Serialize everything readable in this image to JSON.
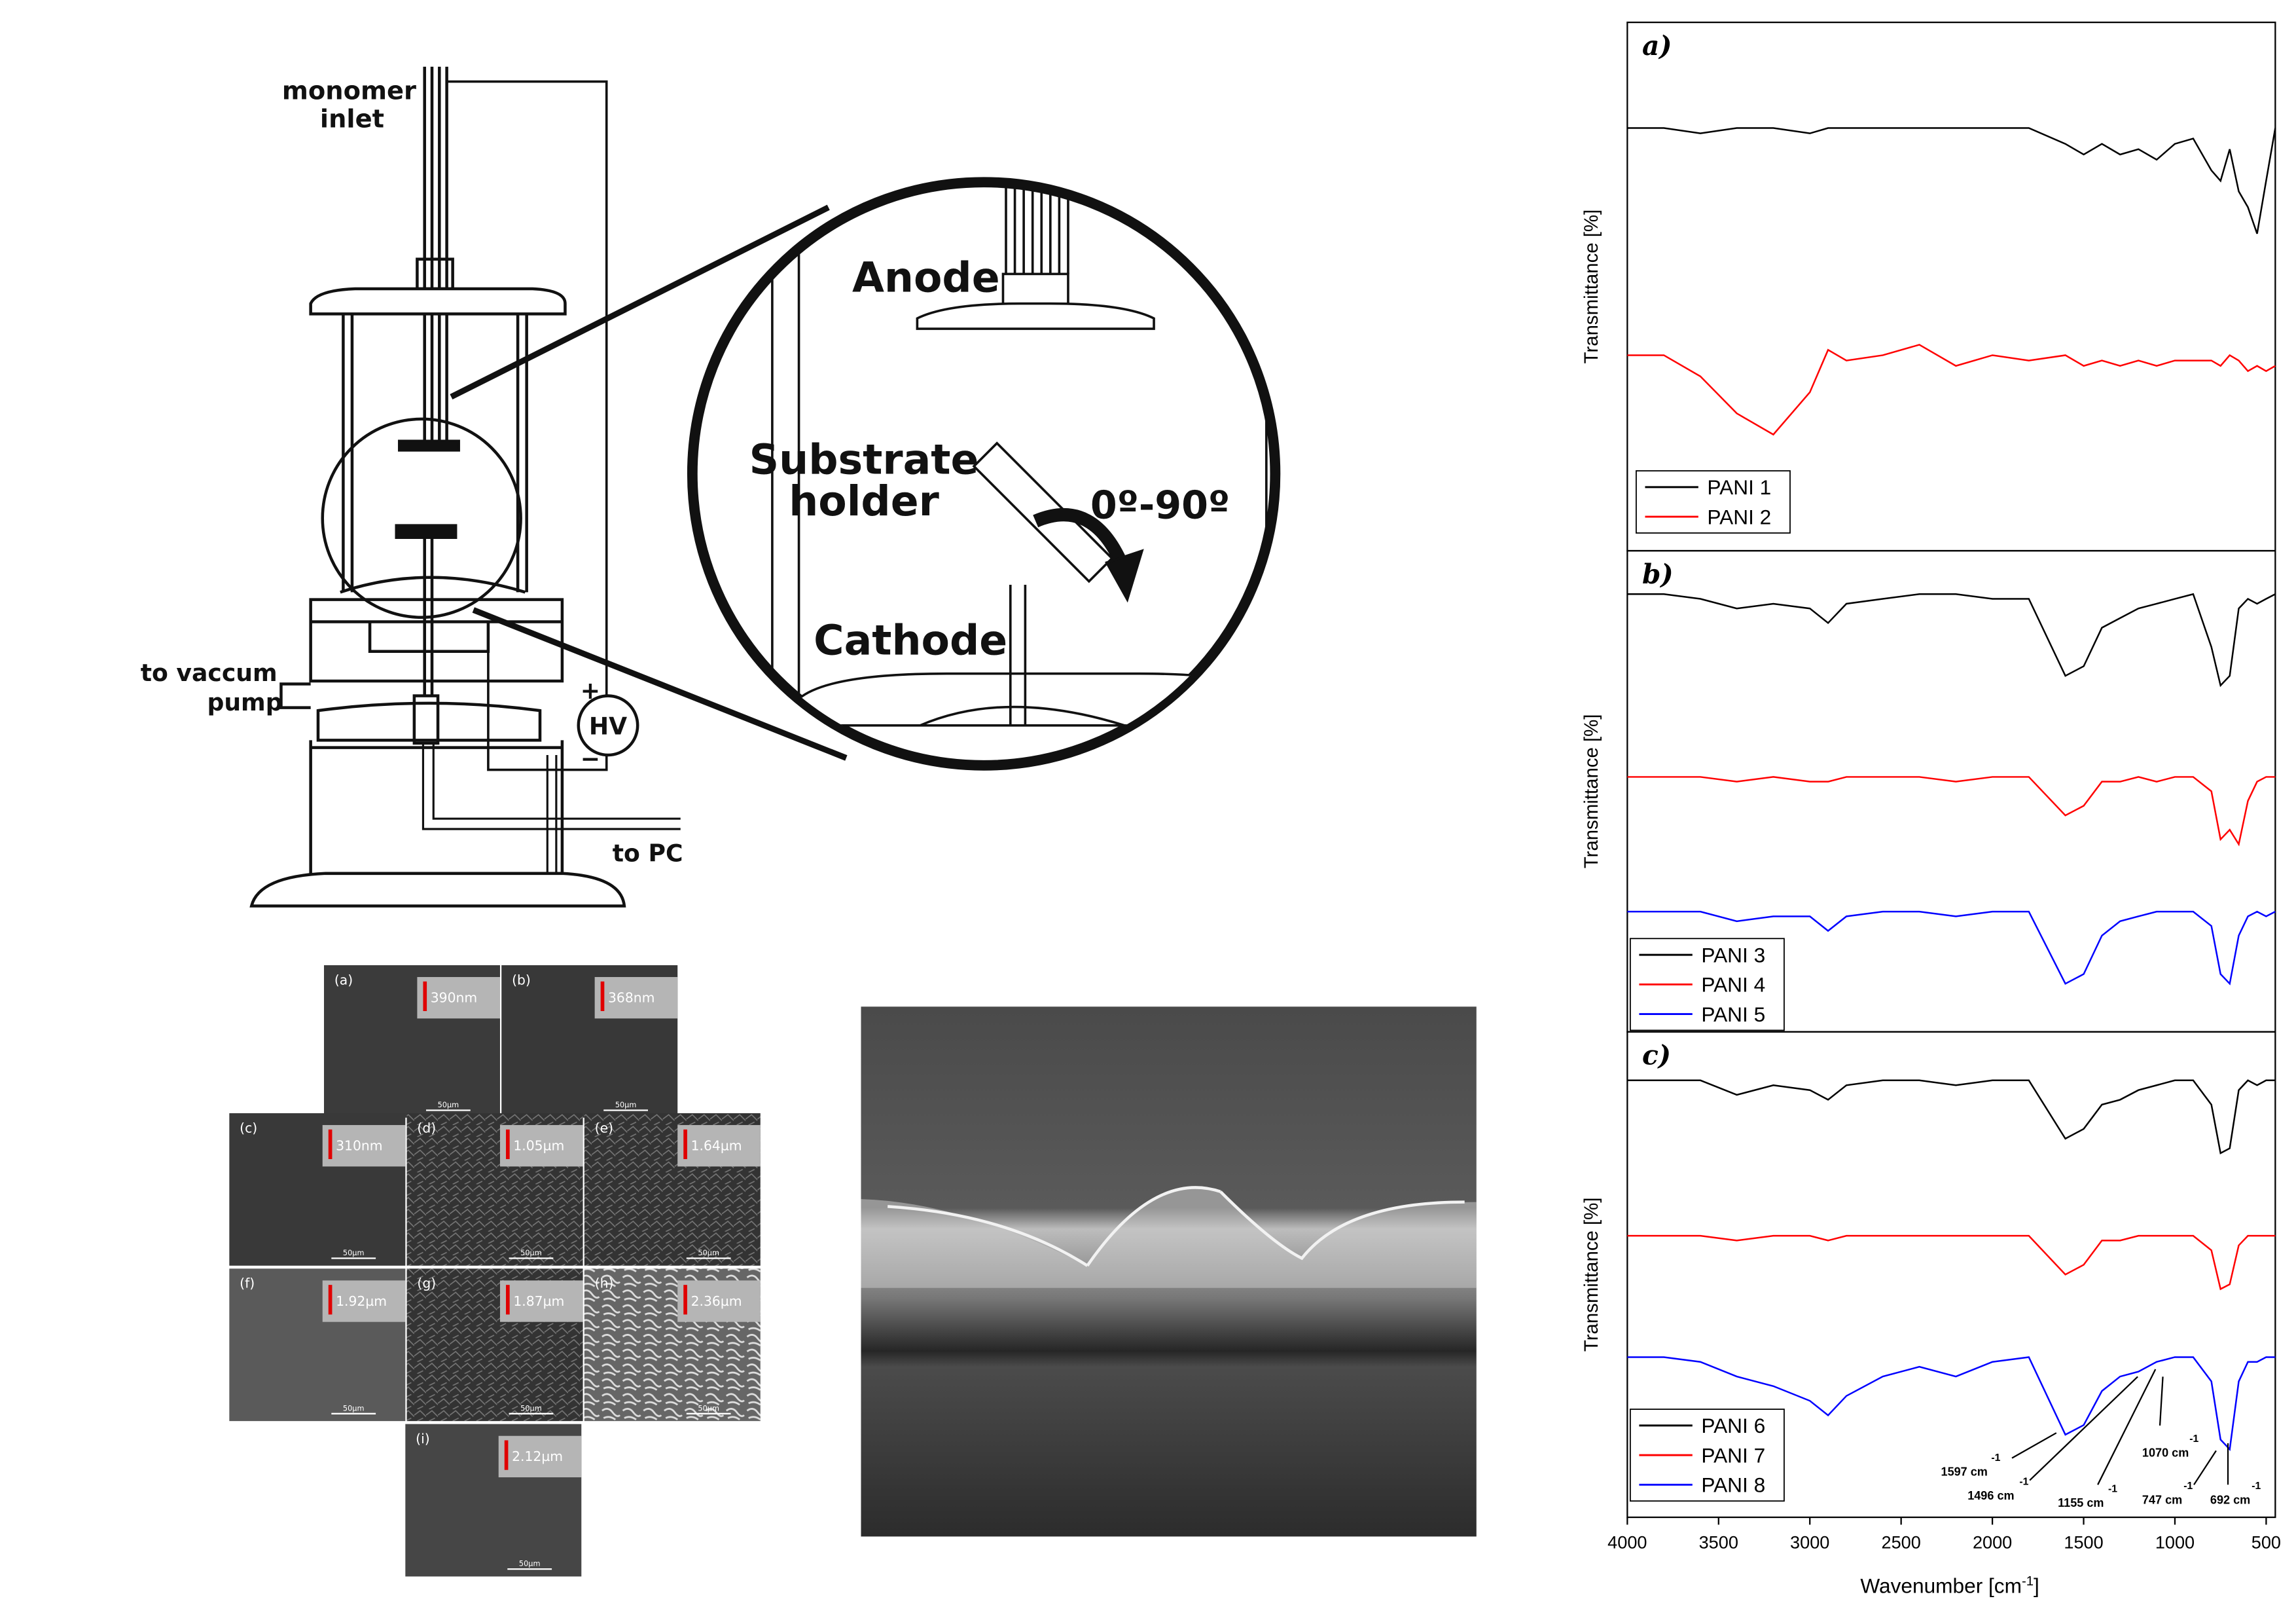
{
  "diagram": {
    "monomer": "monomer",
    "inlet": "inlet",
    "pump1": "to vaccum",
    "pump2": "pump",
    "pc": "to PC",
    "plus": "+",
    "hv": "HV",
    "minus": "−",
    "anode": "Anode",
    "substrate1": "Substrate",
    "substrate2": "holder",
    "angle": "0º-90º",
    "cathode": "Cathode"
  },
  "sem": [
    {
      "label": "(a)",
      "thickness": "390nm",
      "scale": "50µm"
    },
    {
      "label": "(b)",
      "thickness": "368nm",
      "scale": "50µm"
    },
    {
      "label": "(c)",
      "thickness": "310nm",
      "scale": "50µm"
    },
    {
      "label": "(d)",
      "thickness": "1.05µm",
      "scale": "50µm"
    },
    {
      "label": "(e)",
      "thickness": "1.64µm",
      "scale": "50µm"
    },
    {
      "label": "(f)",
      "thickness": "1.92µm",
      "scale": "50µm"
    },
    {
      "label": "(g)",
      "thickness": "1.87µm",
      "scale": "50µm"
    },
    {
      "label": "(h)",
      "thickness": "2.36µm",
      "scale": "50µm"
    },
    {
      "label": "(i)",
      "thickness": "2.12µm",
      "scale": "50µm"
    }
  ],
  "spectra": {
    "type": "line",
    "ylabel": "Transmittance [%]",
    "xlabel": "Wavenumber [cm",
    "xlabel_sup": "-1",
    "xlabel_end": "]",
    "xlim": [
      4000,
      450
    ],
    "ylim": [
      0,
      100
    ],
    "xticks": [
      4000,
      3500,
      3000,
      2500,
      2000,
      1500,
      1000,
      500
    ],
    "x": [
      4000,
      3800,
      3600,
      3400,
      3200,
      3000,
      2900,
      2800,
      2600,
      2400,
      2200,
      2000,
      1800,
      1600,
      1500,
      1400,
      1300,
      1200,
      1100,
      1000,
      900,
      800,
      750,
      700,
      650,
      600,
      550,
      500,
      450
    ],
    "panels": [
      {
        "label": "a)",
        "series": [
          {
            "name": "PANI 1",
            "color": "#000000",
            "values": [
              80,
              80,
              79,
              80,
              80,
              79,
              80,
              80,
              80,
              80,
              80,
              80,
              80,
              77,
              75,
              77,
              75,
              76,
              74,
              77,
              78,
              72,
              70,
              76,
              68,
              65,
              60,
              70,
              80
            ]
          },
          {
            "name": "PANI 2",
            "color": "#ff0000",
            "values": [
              37,
              37,
              33,
              26,
              22,
              30,
              38,
              36,
              37,
              39,
              35,
              37,
              36,
              37,
              35,
              36,
              35,
              36,
              35,
              36,
              36,
              36,
              35,
              37,
              36,
              34,
              35,
              34,
              35
            ]
          }
        ]
      },
      {
        "label": "b)",
        "series": [
          {
            "name": "PANI 3",
            "color": "#000000",
            "values": [
              91,
              91,
              90,
              88,
              89,
              88,
              85,
              89,
              90,
              91,
              91,
              90,
              90,
              74,
              76,
              84,
              86,
              88,
              89,
              90,
              91,
              80,
              72,
              74,
              88,
              90,
              89,
              90,
              91
            ]
          },
          {
            "name": "PANI 4",
            "color": "#ff0000",
            "values": [
              53,
              53,
              53,
              52,
              53,
              52,
              52,
              53,
              53,
              53,
              52,
              53,
              53,
              45,
              47,
              52,
              52,
              53,
              52,
              53,
              53,
              50,
              40,
              42,
              39,
              48,
              52,
              53,
              53
            ]
          },
          {
            "name": "PANI 5",
            "color": "#0000ff",
            "values": [
              25,
              25,
              25,
              23,
              24,
              24,
              21,
              24,
              25,
              25,
              24,
              25,
              25,
              10,
              12,
              20,
              23,
              24,
              25,
              25,
              25,
              22,
              12,
              10,
              20,
              24,
              25,
              24,
              25
            ]
          }
        ]
      },
      {
        "label": "c)",
        "series": [
          {
            "name": "PANI 6",
            "color": "#000000",
            "values": [
              90,
              90,
              90,
              87,
              89,
              88,
              86,
              89,
              90,
              90,
              89,
              90,
              90,
              78,
              80,
              85,
              86,
              88,
              89,
              90,
              90,
              85,
              75,
              76,
              88,
              90,
              89,
              90,
              90
            ]
          },
          {
            "name": "PANI 7",
            "color": "#ff0000",
            "values": [
              58,
              58,
              58,
              57,
              58,
              58,
              57,
              58,
              58,
              58,
              58,
              58,
              58,
              50,
              52,
              57,
              57,
              58,
              58,
              58,
              58,
              55,
              47,
              48,
              56,
              58,
              58,
              58,
              58
            ]
          },
          {
            "name": "PANI 8",
            "color": "#0000ff",
            "values": [
              33,
              33,
              32,
              29,
              27,
              24,
              21,
              25,
              29,
              31,
              29,
              32,
              33,
              17,
              19,
              26,
              29,
              30,
              32,
              33,
              33,
              28,
              16,
              14,
              28,
              32,
              32,
              33,
              33
            ]
          }
        ]
      }
    ],
    "annotations": [
      {
        "text": "1597 cm",
        "sup": "-1"
      },
      {
        "text": "1496 cm",
        "sup": "-1"
      },
      {
        "text": "1155 cm",
        "sup": "-1"
      },
      {
        "text": "1070 cm",
        "sup": "-1"
      },
      {
        "text": "747 cm",
        "sup": "-1"
      },
      {
        "text": "692 cm",
        "sup": "-1"
      }
    ]
  }
}
